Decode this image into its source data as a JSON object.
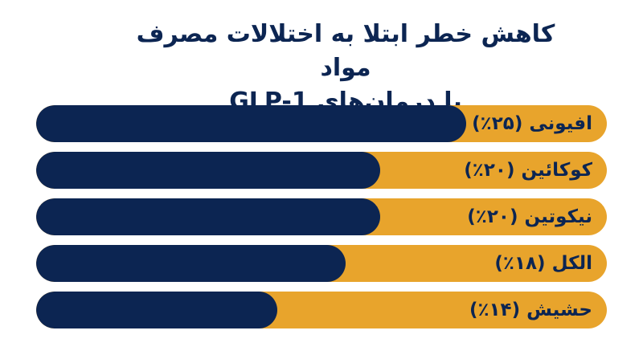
{
  "chart_data": {
    "type": "bar",
    "title_lines": [
      "کاهش خطر ابتلا به اختلالات مصرف مواد",
      "با درمان‌های GLP-1"
    ],
    "categories": [
      "افیونی",
      "کوکائین",
      "نیکوتین",
      "الکل",
      "حشیش"
    ],
    "labels": [
      "افیونی (۲۵٪)",
      "کوکائین (۲۰٪)",
      "نیکوتین (۲۰٪)",
      "الکل (۱۸٪)",
      "حشیش (۱۴٪)"
    ],
    "values": [
      25,
      20,
      20,
      18,
      14
    ],
    "orientation": "horizontal",
    "colors": {
      "fill": "#0c2552",
      "track": "#e8a42c",
      "text": "#0c2552"
    }
  }
}
